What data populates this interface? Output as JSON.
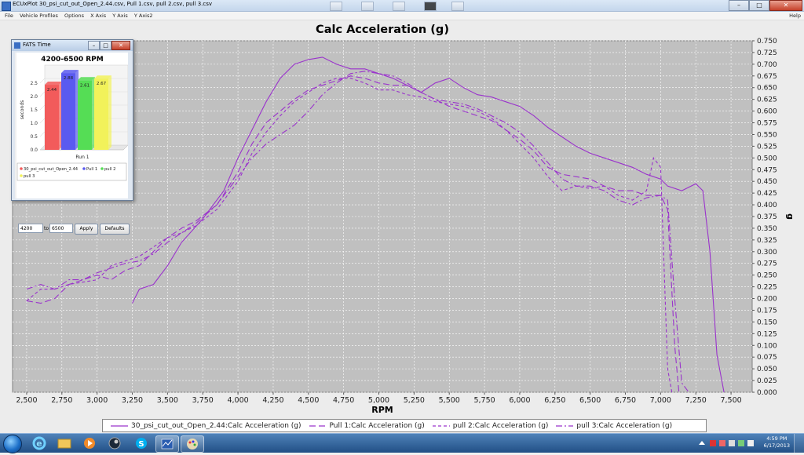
{
  "window": {
    "title": "ECUxPlot 30_psi_cut_out_Open_2.44.csv, Pull 1.csv, pull 2.csv, pull 3.csv",
    "min_label": "–",
    "max_label": "□",
    "close_label": "✕"
  },
  "menu": [
    "File",
    "Vehicle Profiles",
    "Options",
    "X Axis",
    "Y Axis",
    "Y Axis2"
  ],
  "menu_help": "Help",
  "chart_data": {
    "type": "line",
    "title": "Calc Acceleration (g)",
    "xlabel": "RPM",
    "ylabel": "g",
    "xlim": [
      2400,
      7650
    ],
    "ylim": [
      0,
      0.75
    ],
    "x_ticks": [
      2500,
      2750,
      3000,
      3250,
      3500,
      3750,
      4000,
      4250,
      4500,
      4750,
      5000,
      5250,
      5500,
      5750,
      6000,
      6250,
      6500,
      6750,
      7000,
      7250,
      7500
    ],
    "x_tick_labels": [
      "2,500",
      "2,750",
      "3,000",
      "3,250",
      "3,500",
      "3,750",
      "4,000",
      "4,250",
      "4,500",
      "4,750",
      "5,000",
      "5,250",
      "5,500",
      "5,750",
      "6,000",
      "6,250",
      "6,500",
      "6,750",
      "7,000",
      "7,250",
      "7,500"
    ],
    "y_ticks": [
      0,
      0.025,
      0.05,
      0.075,
      0.1,
      0.125,
      0.15,
      0.175,
      0.2,
      0.225,
      0.25,
      0.275,
      0.3,
      0.325,
      0.35,
      0.375,
      0.4,
      0.425,
      0.45,
      0.475,
      0.5,
      0.525,
      0.55,
      0.575,
      0.6,
      0.625,
      0.65,
      0.675,
      0.7,
      0.725,
      0.75
    ],
    "y_tick_labels": [
      "0.000",
      "0.025",
      "0.050",
      "0.075",
      "0.100",
      "0.125",
      "0.150",
      "0.175",
      "0.200",
      "0.225",
      "0.250",
      "0.275",
      "0.300",
      "0.325",
      "0.350",
      "0.375",
      "0.400",
      "0.425",
      "0.450",
      "0.475",
      "0.500",
      "0.525",
      "0.550",
      "0.575",
      "0.600",
      "0.625",
      "0.650",
      "0.675",
      "0.700",
      "0.725",
      "0.750"
    ],
    "grid": true,
    "legend_position": "bottom",
    "series": [
      {
        "name": "30_psi_cut_out_Open_2.44:Calc Acceleration (g)",
        "color": "#9a33cc",
        "dash": "solid",
        "points": [
          [
            3250,
            0.19
          ],
          [
            3300,
            0.22
          ],
          [
            3400,
            0.23
          ],
          [
            3500,
            0.27
          ],
          [
            3600,
            0.32
          ],
          [
            3750,
            0.37
          ],
          [
            3900,
            0.43
          ],
          [
            4000,
            0.5
          ],
          [
            4100,
            0.56
          ],
          [
            4200,
            0.62
          ],
          [
            4300,
            0.67
          ],
          [
            4400,
            0.7
          ],
          [
            4500,
            0.71
          ],
          [
            4600,
            0.715
          ],
          [
            4700,
            0.7
          ],
          [
            4800,
            0.69
          ],
          [
            4900,
            0.69
          ],
          [
            5000,
            0.68
          ],
          [
            5100,
            0.67
          ],
          [
            5200,
            0.655
          ],
          [
            5300,
            0.64
          ],
          [
            5400,
            0.66
          ],
          [
            5500,
            0.67
          ],
          [
            5600,
            0.65
          ],
          [
            5700,
            0.635
          ],
          [
            5800,
            0.63
          ],
          [
            5900,
            0.62
          ],
          [
            6000,
            0.61
          ],
          [
            6100,
            0.59
          ],
          [
            6200,
            0.565
          ],
          [
            6300,
            0.545
          ],
          [
            6400,
            0.525
          ],
          [
            6500,
            0.51
          ],
          [
            6600,
            0.5
          ],
          [
            6700,
            0.49
          ],
          [
            6800,
            0.48
          ],
          [
            6900,
            0.465
          ],
          [
            7000,
            0.455
          ],
          [
            7050,
            0.44
          ],
          [
            7150,
            0.43
          ],
          [
            7250,
            0.445
          ],
          [
            7300,
            0.43
          ],
          [
            7350,
            0.3
          ],
          [
            7400,
            0.08
          ],
          [
            7450,
            0.0
          ]
        ]
      },
      {
        "name": "Pull 1:Calc Acceleration (g)",
        "color": "#9a33cc",
        "dash": "8,4",
        "points": [
          [
            2500,
            0.195
          ],
          [
            2600,
            0.19
          ],
          [
            2700,
            0.2
          ],
          [
            2800,
            0.23
          ],
          [
            3000,
            0.25
          ],
          [
            3100,
            0.24
          ],
          [
            3200,
            0.26
          ],
          [
            3300,
            0.27
          ],
          [
            3400,
            0.3
          ],
          [
            3500,
            0.33
          ],
          [
            3600,
            0.35
          ],
          [
            3700,
            0.365
          ],
          [
            3850,
            0.4
          ],
          [
            4000,
            0.47
          ],
          [
            4100,
            0.53
          ],
          [
            4200,
            0.575
          ],
          [
            4300,
            0.6
          ],
          [
            4400,
            0.625
          ],
          [
            4500,
            0.645
          ],
          [
            4600,
            0.655
          ],
          [
            4700,
            0.665
          ],
          [
            4800,
            0.675
          ],
          [
            4900,
            0.67
          ],
          [
            5000,
            0.66
          ],
          [
            5100,
            0.655
          ],
          [
            5200,
            0.655
          ],
          [
            5300,
            0.64
          ],
          [
            5400,
            0.625
          ],
          [
            5500,
            0.61
          ],
          [
            5600,
            0.6
          ],
          [
            5700,
            0.59
          ],
          [
            5800,
            0.58
          ],
          [
            5900,
            0.56
          ],
          [
            6000,
            0.54
          ],
          [
            6100,
            0.515
          ],
          [
            6200,
            0.48
          ],
          [
            6300,
            0.465
          ],
          [
            6400,
            0.46
          ],
          [
            6500,
            0.455
          ],
          [
            6600,
            0.44
          ],
          [
            6700,
            0.43
          ],
          [
            6800,
            0.43
          ],
          [
            6900,
            0.42
          ],
          [
            7000,
            0.42
          ],
          [
            7050,
            0.39
          ],
          [
            7100,
            0.1
          ],
          [
            7130,
            0.0
          ]
        ]
      },
      {
        "name": "pull 2:Calc Acceleration (g)",
        "color": "#9a33cc",
        "dash": "4,3",
        "points": [
          [
            2500,
            0.195
          ],
          [
            2600,
            0.22
          ],
          [
            2700,
            0.22
          ],
          [
            2800,
            0.23
          ],
          [
            2900,
            0.235
          ],
          [
            3000,
            0.24
          ],
          [
            3100,
            0.27
          ],
          [
            3200,
            0.28
          ],
          [
            3300,
            0.29
          ],
          [
            3400,
            0.31
          ],
          [
            3500,
            0.33
          ],
          [
            3600,
            0.34
          ],
          [
            3700,
            0.355
          ],
          [
            3850,
            0.39
          ],
          [
            4000,
            0.45
          ],
          [
            4100,
            0.51
          ],
          [
            4200,
            0.555
          ],
          [
            4300,
            0.59
          ],
          [
            4400,
            0.62
          ],
          [
            4500,
            0.64
          ],
          [
            4600,
            0.66
          ],
          [
            4700,
            0.67
          ],
          [
            4800,
            0.67
          ],
          [
            4900,
            0.66
          ],
          [
            5000,
            0.645
          ],
          [
            5100,
            0.645
          ],
          [
            5200,
            0.635
          ],
          [
            5300,
            0.63
          ],
          [
            5400,
            0.62
          ],
          [
            5500,
            0.615
          ],
          [
            5600,
            0.61
          ],
          [
            5700,
            0.6
          ],
          [
            5800,
            0.585
          ],
          [
            5900,
            0.56
          ],
          [
            6000,
            0.53
          ],
          [
            6100,
            0.5
          ],
          [
            6200,
            0.46
          ],
          [
            6300,
            0.43
          ],
          [
            6400,
            0.44
          ],
          [
            6500,
            0.435
          ],
          [
            6600,
            0.44
          ],
          [
            6700,
            0.42
          ],
          [
            6800,
            0.41
          ],
          [
            6900,
            0.43
          ],
          [
            6950,
            0.5
          ],
          [
            7000,
            0.48
          ],
          [
            7050,
            0.05
          ],
          [
            7080,
            0.0
          ]
        ]
      },
      {
        "name": "pull 3:Calc Acceleration (g)",
        "color": "#9a33cc",
        "dash": "8,3,2,3",
        "points": [
          [
            2500,
            0.22
          ],
          [
            2600,
            0.23
          ],
          [
            2700,
            0.22
          ],
          [
            2800,
            0.24
          ],
          [
            2900,
            0.24
          ],
          [
            3000,
            0.255
          ],
          [
            3100,
            0.265
          ],
          [
            3200,
            0.275
          ],
          [
            3300,
            0.28
          ],
          [
            3400,
            0.295
          ],
          [
            3500,
            0.32
          ],
          [
            3600,
            0.34
          ],
          [
            3700,
            0.36
          ],
          [
            3850,
            0.4
          ],
          [
            4000,
            0.46
          ],
          [
            4100,
            0.5
          ],
          [
            4200,
            0.53
          ],
          [
            4300,
            0.55
          ],
          [
            4400,
            0.57
          ],
          [
            4500,
            0.6
          ],
          [
            4600,
            0.635
          ],
          [
            4700,
            0.66
          ],
          [
            4800,
            0.68
          ],
          [
            4900,
            0.685
          ],
          [
            5000,
            0.68
          ],
          [
            5100,
            0.675
          ],
          [
            5200,
            0.66
          ],
          [
            5300,
            0.64
          ],
          [
            5400,
            0.625
          ],
          [
            5500,
            0.62
          ],
          [
            5600,
            0.615
          ],
          [
            5700,
            0.605
          ],
          [
            5800,
            0.59
          ],
          [
            5900,
            0.575
          ],
          [
            6000,
            0.555
          ],
          [
            6100,
            0.525
          ],
          [
            6200,
            0.49
          ],
          [
            6300,
            0.455
          ],
          [
            6400,
            0.44
          ],
          [
            6500,
            0.44
          ],
          [
            6600,
            0.43
          ],
          [
            6700,
            0.41
          ],
          [
            6800,
            0.4
          ],
          [
            6900,
            0.415
          ],
          [
            7000,
            0.42
          ],
          [
            7050,
            0.41
          ],
          [
            7100,
            0.2
          ],
          [
            7150,
            0.02
          ],
          [
            7200,
            0.0
          ]
        ]
      }
    ]
  },
  "fats": {
    "window_title": "FATS Time",
    "close_label": "✕",
    "chart_data": {
      "type": "bar",
      "title": "4200-6500 RPM",
      "ylabel": "seconds",
      "xlabel": "Run 1",
      "ylim": [
        0,
        3.0
      ],
      "y_ticks": [
        0,
        0.5,
        1.0,
        1.5,
        2.0,
        2.5
      ],
      "y_tick_labels": [
        "0.0",
        "0.5",
        "1.0",
        "1.5",
        "2.0",
        "2.5"
      ],
      "series": [
        {
          "name": "30_psi_cut_out_Open_2.44",
          "value": 2.44,
          "label": "2.44",
          "color": "#f25b5b"
        },
        {
          "name": "Pull 1",
          "value": 2.88,
          "label": "2.88",
          "color": "#5a5af0"
        },
        {
          "name": "pull 2",
          "value": 2.61,
          "label": "2.61",
          "color": "#55dd55"
        },
        {
          "name": "pull 3",
          "value": 2.67,
          "label": "2.67",
          "color": "#f2f25a"
        }
      ]
    },
    "from_value": "4200",
    "to_label": "to",
    "to_value": "6500",
    "apply_label": "Apply",
    "defaults_label": "Defaults"
  },
  "taskbar": {
    "apps": [
      "start",
      "internet-explorer",
      "file-explorer",
      "media-player",
      "steam",
      "skype",
      "ecuxplot",
      "paint"
    ],
    "time": "4:59 PM",
    "date": "6/17/2013"
  }
}
